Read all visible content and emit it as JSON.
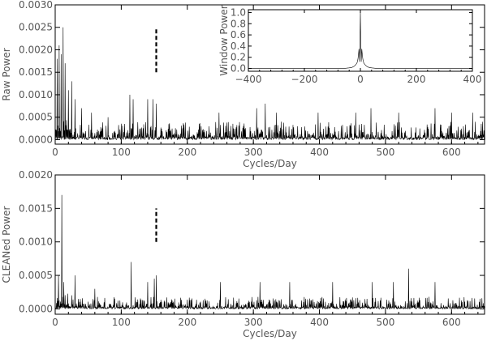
{
  "chart_data": [
    {
      "id": "raw",
      "type": "line",
      "title": "",
      "xlabel": "Cycles/Day",
      "ylabel": "Raw  Power",
      "xlim": [
        0,
        650
      ],
      "ylim": [
        -0.0001,
        0.003
      ],
      "xticks": [
        0,
        100,
        200,
        300,
        400,
        500,
        600
      ],
      "xtick_labels": [
        "0",
        "100",
        "200",
        "300",
        "400",
        "500",
        "600"
      ],
      "yticks": [
        0.0,
        0.0005,
        0.001,
        0.0015,
        0.002,
        0.0025,
        0.003
      ],
      "ytick_labels": [
        "0.0000",
        "0.0005",
        "0.0010",
        "0.0015",
        "0.0020",
        "0.0025",
        "0.0030"
      ],
      "grid": false,
      "series": [
        {
          "style": "line",
          "x_step": 1,
          "noise_floor": 0.0004,
          "peaks": [
            {
              "x": 3,
              "y": 0.0018
            },
            {
              "x": 6,
              "y": 0.0021
            },
            {
              "x": 9,
              "y": 0.0019
            },
            {
              "x": 12,
              "y": 0.0025
            },
            {
              "x": 15,
              "y": 0.0017
            },
            {
              "x": 20,
              "y": 0.0011
            },
            {
              "x": 25,
              "y": 0.0013
            },
            {
              "x": 30,
              "y": 0.0009
            },
            {
              "x": 40,
              "y": 0.0007
            },
            {
              "x": 55,
              "y": 0.0006
            },
            {
              "x": 80,
              "y": 0.0005
            },
            {
              "x": 113,
              "y": 0.001
            },
            {
              "x": 118,
              "y": 0.0009
            },
            {
              "x": 140,
              "y": 0.0009
            },
            {
              "x": 148,
              "y": 0.0009
            },
            {
              "x": 153,
              "y": 0.0008
            },
            {
              "x": 248,
              "y": 0.0006
            },
            {
              "x": 305,
              "y": 0.0007
            },
            {
              "x": 318,
              "y": 0.0008
            },
            {
              "x": 335,
              "y": 0.0006
            },
            {
              "x": 398,
              "y": 0.0006
            },
            {
              "x": 455,
              "y": 0.0006
            },
            {
              "x": 478,
              "y": 0.0007
            },
            {
              "x": 520,
              "y": 0.0006
            },
            {
              "x": 575,
              "y": 0.0007
            },
            {
              "x": 600,
              "y": 0.0006
            },
            {
              "x": 632,
              "y": 0.0006
            }
          ]
        },
        {
          "style": "dashed-vertical-marker",
          "x": 153,
          "y_range": [
            0.0015,
            0.0025
          ]
        }
      ]
    },
    {
      "id": "window",
      "type": "line",
      "title": "",
      "xlabel": "",
      "ylabel": "Window  Power",
      "xlim": [
        -400,
        400
      ],
      "ylim": [
        -0.05,
        1.05
      ],
      "xticks": [
        -400,
        -200,
        0,
        200,
        400
      ],
      "xtick_labels": [
        "−400",
        "−200",
        "0",
        "200",
        "400"
      ],
      "yticks": [
        0.0,
        0.2,
        0.4,
        0.6,
        0.8,
        1.0
      ],
      "ytick_labels": [
        "0.0",
        "0.2",
        "0.4",
        "0.6",
        "0.8",
        "1.0"
      ],
      "grid": false,
      "series": [
        {
          "style": "line",
          "points": [
            [
              -400,
              0.0
            ],
            [
              -60,
              0.0
            ],
            [
              -40,
              0.01
            ],
            [
              -30,
              0.02
            ],
            [
              -22,
              0.04
            ],
            [
              -16,
              0.07
            ],
            [
              -12,
              0.1
            ],
            [
              -9,
              0.16
            ],
            [
              -7,
              0.24
            ],
            [
              -5,
              0.35
            ],
            [
              -3,
              0.12
            ],
            [
              -1,
              0.6
            ],
            [
              0,
              1.0
            ],
            [
              1,
              0.6
            ],
            [
              3,
              0.12
            ],
            [
              5,
              0.35
            ],
            [
              7,
              0.24
            ],
            [
              9,
              0.16
            ],
            [
              12,
              0.1
            ],
            [
              16,
              0.07
            ],
            [
              22,
              0.04
            ],
            [
              30,
              0.02
            ],
            [
              40,
              0.01
            ],
            [
              60,
              0.0
            ],
            [
              400,
              0.0
            ]
          ]
        }
      ]
    },
    {
      "id": "clean",
      "type": "line",
      "title": "",
      "xlabel": "Cycles/Day",
      "ylabel": "CLEANed  Power",
      "xlim": [
        0,
        650
      ],
      "ylim": [
        -8e-05,
        0.002
      ],
      "xticks": [
        0,
        100,
        200,
        300,
        400,
        500,
        600
      ],
      "xtick_labels": [
        "0",
        "100",
        "200",
        "300",
        "400",
        "500",
        "600"
      ],
      "yticks": [
        0.0,
        0.0005,
        0.001,
        0.0015,
        0.002
      ],
      "ytick_labels": [
        "0.0000",
        "0.0005",
        "0.0010",
        "0.0015",
        "0.0020"
      ],
      "grid": false,
      "series": [
        {
          "style": "line",
          "x_step": 1,
          "noise_floor": 0.00018,
          "peaks": [
            {
              "x": 5,
              "y": 0.0005
            },
            {
              "x": 10,
              "y": 0.0017
            },
            {
              "x": 13,
              "y": 0.0004
            },
            {
              "x": 30,
              "y": 0.0005
            },
            {
              "x": 60,
              "y": 0.0003
            },
            {
              "x": 115,
              "y": 0.0007
            },
            {
              "x": 140,
              "y": 0.0004
            },
            {
              "x": 150,
              "y": 0.00045
            },
            {
              "x": 153,
              "y": 0.0005
            },
            {
              "x": 250,
              "y": 0.0004
            },
            {
              "x": 310,
              "y": 0.0004
            },
            {
              "x": 355,
              "y": 0.0004
            },
            {
              "x": 420,
              "y": 0.0004
            },
            {
              "x": 480,
              "y": 0.0004
            },
            {
              "x": 512,
              "y": 0.0004
            },
            {
              "x": 535,
              "y": 0.0006
            },
            {
              "x": 575,
              "y": 0.0004
            }
          ]
        },
        {
          "style": "dashed-vertical-marker",
          "x": 153,
          "y_range": [
            0.001,
            0.0015
          ]
        }
      ]
    }
  ]
}
